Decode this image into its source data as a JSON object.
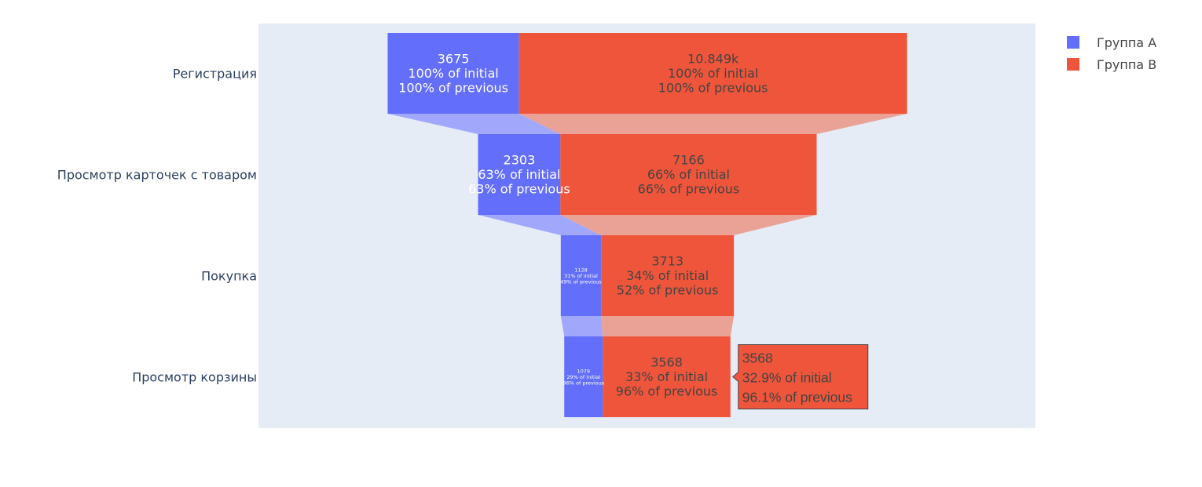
{
  "chart_data": {
    "type": "funnel",
    "categories": [
      "Регистрация",
      "Просмотр карточек с товаром",
      "Покупка",
      "Просмотр корзины"
    ],
    "series": [
      {
        "name": "Группа А",
        "color": "#636efa",
        "connector_color": "#a1a8fb",
        "values": [
          3675,
          2303,
          1128,
          1079
        ],
        "value_labels": [
          "3675",
          "2303",
          "1128",
          "1079"
        ],
        "pct_initial": [
          "100% of initial",
          "63% of initial",
          "31% of initial",
          "29% of initial"
        ],
        "pct_previous": [
          "100% of previous",
          "63% of previous",
          "49% of previous",
          "96% of previous"
        ]
      },
      {
        "name": "Группа В",
        "color": "#ef553b",
        "connector_color": "#eaa297",
        "values": [
          10849,
          7166,
          3713,
          3568
        ],
        "value_labels": [
          "10.849k",
          "7166",
          "3713",
          "3568"
        ],
        "pct_initial": [
          "100% of initial",
          "66% of initial",
          "34% of initial",
          "33% of initial"
        ],
        "pct_previous": [
          "100% of previous",
          "66% of previous",
          "52% of previous",
          "96% of previous"
        ]
      }
    ],
    "plot_background": "#e5ecf6",
    "legend_position": "top-right",
    "tooltip": {
      "series": "Группа В",
      "category": "Просмотр корзины",
      "lines": [
        "3568",
        "32.9% of initial",
        "96.1% of previous"
      ]
    }
  }
}
